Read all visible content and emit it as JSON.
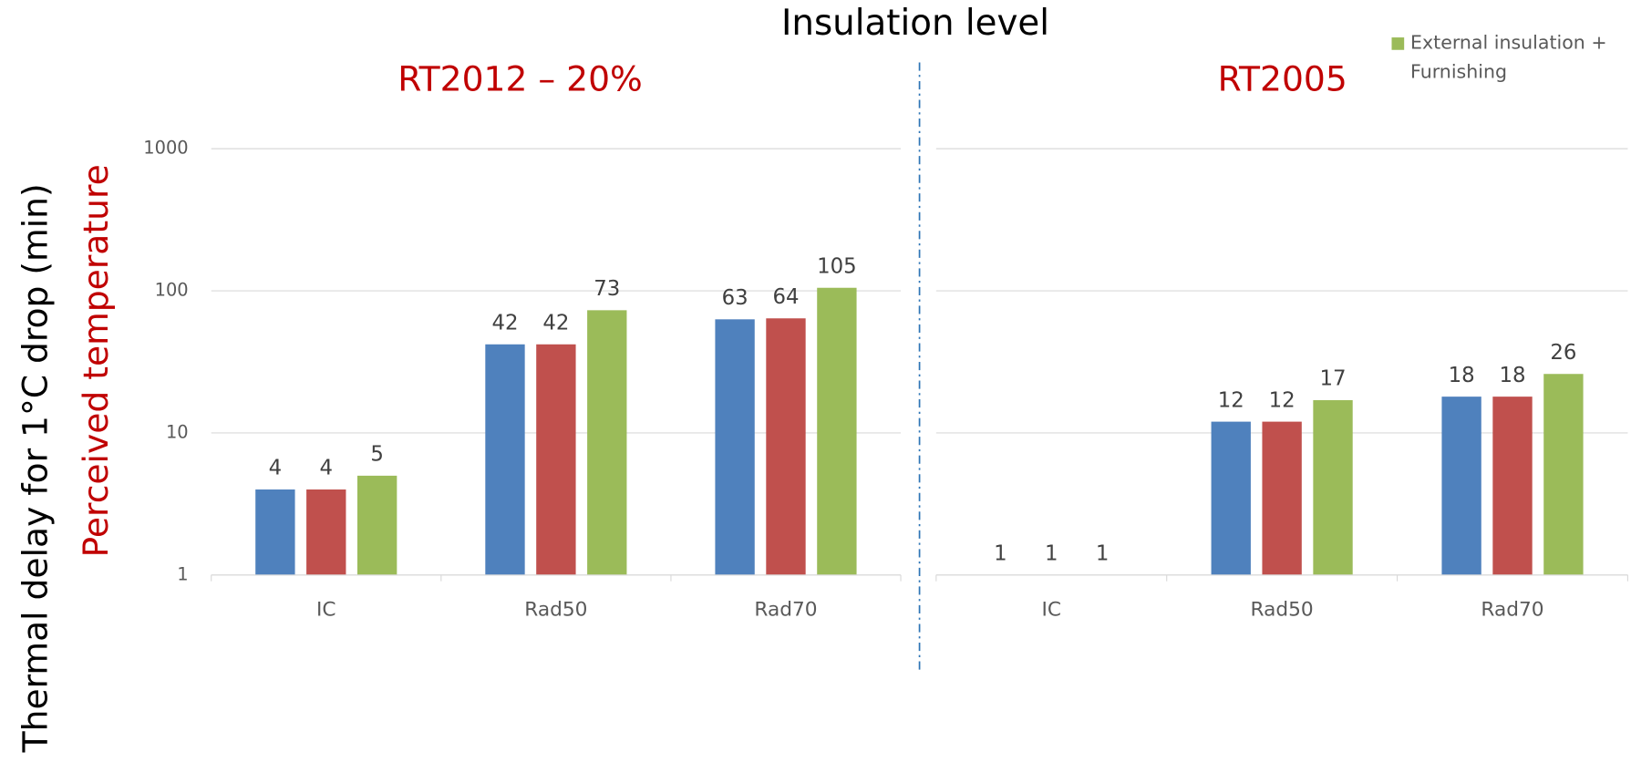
{
  "title": "Insulation level",
  "y_label": "Thermal delay for 1°C drop (min)",
  "y_sublabel": "Perceived temperature",
  "chart_data": [
    {
      "type": "bar",
      "title": "RT2012 – 20%",
      "categories": [
        "IC",
        "Rad50",
        "Rad70"
      ],
      "series": [
        {
          "color": "#4f81bd",
          "values": [
            4,
            42,
            63
          ]
        },
        {
          "color": "#c0504d",
          "values": [
            4,
            42,
            64
          ]
        },
        {
          "name": "External insulation + Furnishing",
          "color": "#9bbb59",
          "values": [
            5,
            73,
            105
          ]
        }
      ],
      "log_scale": true,
      "ylim": [
        1,
        1000
      ],
      "yticks": [
        1,
        10,
        100,
        1000
      ],
      "grid": true,
      "legend": "upper right"
    },
    {
      "type": "bar",
      "title": "RT2005",
      "categories": [
        "IC",
        "Rad50",
        "Rad70"
      ],
      "series": [
        {
          "color": "#4f81bd",
          "values": [
            1,
            12,
            18
          ]
        },
        {
          "color": "#c0504d",
          "values": [
            1,
            12,
            18
          ]
        },
        {
          "color": "#9bbb59",
          "values": [
            1,
            17,
            26
          ]
        }
      ],
      "log_scale": true,
      "ylim": [
        1,
        1000
      ],
      "yticks": [
        1,
        10,
        100,
        1000
      ],
      "grid": true
    }
  ]
}
